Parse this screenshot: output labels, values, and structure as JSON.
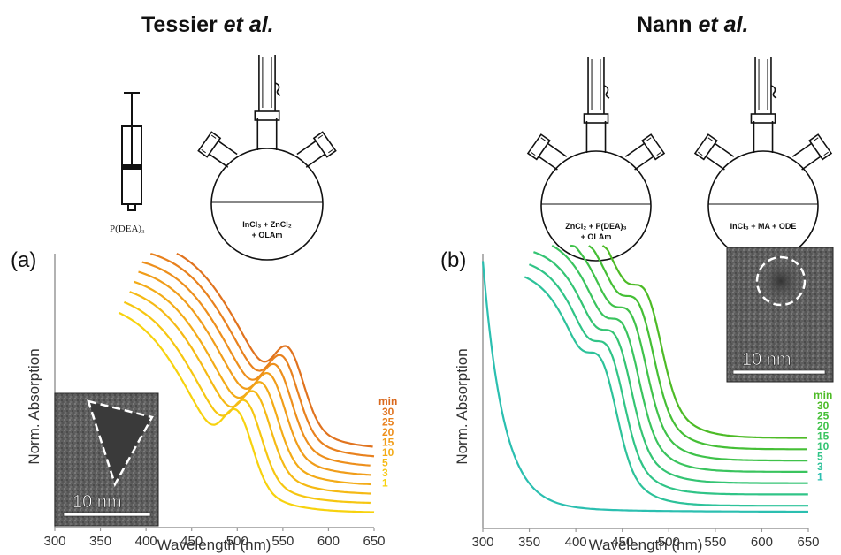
{
  "headings": {
    "left_name": "Tessier ",
    "left_etal": "et al.",
    "right_name": "Nann ",
    "right_etal": "et al."
  },
  "schematic": {
    "syringe_label": "P(DEA)₃",
    "flask_left": [
      "InCl₃ + ZnCl₂",
      "+ OLAm"
    ],
    "flask_mid": [
      "ZnCl₂ + P(DEA)₃",
      "+ OLAm"
    ],
    "flask_right": [
      "InCl₃ + MA + ODE"
    ]
  },
  "chart_data": [
    {
      "type": "line",
      "panel_label": "(a)",
      "xlabel": "Wavelength (nm)",
      "ylabel": "Norm. Absorption",
      "xlim": [
        300,
        650
      ],
      "x_ticks": [
        300,
        350,
        400,
        450,
        500,
        550,
        600,
        650
      ],
      "legend_title": "min",
      "legend_labels": [
        "30",
        "25",
        "20",
        "15",
        "10",
        "5",
        "3",
        "1"
      ],
      "inset": {
        "scale_text": "10 nm",
        "shape": "triangle"
      },
      "series_x": [
        380,
        390,
        400,
        410,
        420,
        430,
        440,
        450,
        460,
        470,
        480,
        490,
        500,
        510,
        520,
        530,
        540,
        550,
        560,
        570,
        580,
        590,
        600,
        610,
        620,
        630,
        640,
        650
      ],
      "series": [
        {
          "label": "1",
          "color": "#f7d20e",
          "shift": 0,
          "offset": 0.0
        },
        {
          "label": "3",
          "color": "#f6c611",
          "shift": 10,
          "offset": 0.04
        },
        {
          "label": "5",
          "color": "#f5b914",
          "shift": 20,
          "offset": 0.08
        },
        {
          "label": "10",
          "color": "#f3ab17",
          "shift": 28,
          "offset": 0.12
        },
        {
          "label": "15",
          "color": "#f09d1a",
          "shift": 36,
          "offset": 0.16
        },
        {
          "label": "20",
          "color": "#ed8f1c",
          "shift": 43,
          "offset": 0.2
        },
        {
          "label": "25",
          "color": "#e8811e",
          "shift": 50,
          "offset": 0.24
        },
        {
          "label": "30",
          "color": "#e0731f",
          "shift": 56,
          "offset": 0.28
        }
      ]
    },
    {
      "type": "line",
      "panel_label": "(b)",
      "xlabel": "Wavelength (nm)",
      "ylabel": "Norm. Absorption",
      "xlim": [
        300,
        650
      ],
      "x_ticks": [
        300,
        350,
        400,
        450,
        500,
        550,
        600,
        650
      ],
      "legend_title": "min",
      "legend_labels": [
        "30",
        "25",
        "20",
        "15",
        "10",
        "5",
        "3",
        "1"
      ],
      "inset": {
        "scale_text": "10 nm",
        "shape": "circle"
      },
      "series": [
        {
          "label": "1",
          "color": "#2bbfb0",
          "shift": 0,
          "offset": 0.0
        },
        {
          "label": "3",
          "color": "#2dc29a",
          "shift": 0,
          "offset": 0.045
        },
        {
          "label": "5",
          "color": "#30c487",
          "shift": 8,
          "offset": 0.09
        },
        {
          "label": "10",
          "color": "#34c473",
          "shift": 16,
          "offset": 0.135
        },
        {
          "label": "15",
          "color": "#3ac45e",
          "shift": 24,
          "offset": 0.18
        },
        {
          "label": "20",
          "color": "#3fc24a",
          "shift": 32,
          "offset": 0.225
        },
        {
          "label": "25",
          "color": "#45bf36",
          "shift": 40,
          "offset": 0.27
        },
        {
          "label": "30",
          "color": "#4dbb26",
          "shift": 48,
          "offset": 0.315
        }
      ]
    }
  ]
}
